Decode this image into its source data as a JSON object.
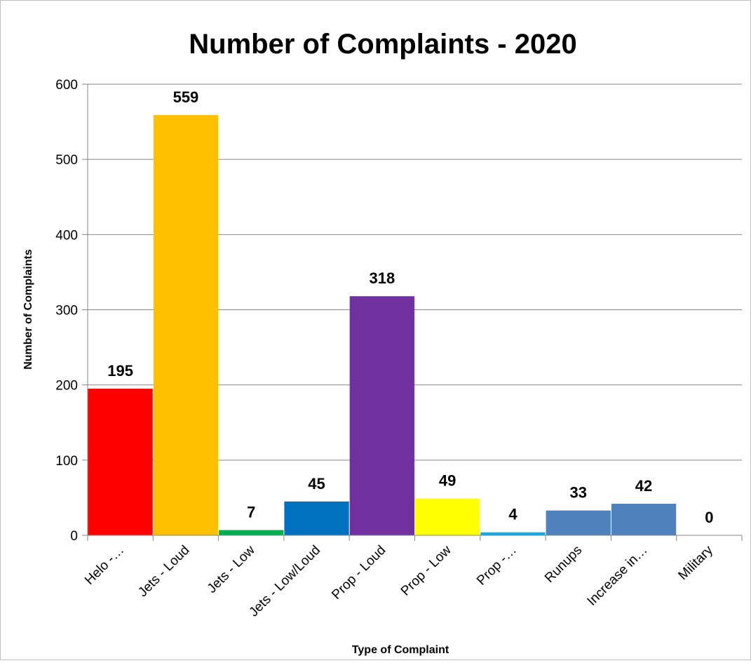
{
  "chart_data": {
    "type": "bar",
    "title": "Number of Complaints - 2020",
    "xlabel": "Type of Complaint",
    "ylabel": "Number of Complaints",
    "ylim": [
      0,
      600
    ],
    "yticks": [
      0,
      100,
      200,
      300,
      400,
      500,
      600
    ],
    "categories": [
      "Helo -…",
      "Jets - Loud",
      "Jets - Low",
      "Jets - Low/Loud",
      "Prop - Loud",
      "Prop - Low",
      "Prop -…",
      "Runups",
      "Increase in…",
      "Military"
    ],
    "values": [
      195,
      559,
      7,
      45,
      318,
      49,
      4,
      33,
      42,
      0
    ],
    "data_labels": [
      "195",
      "559",
      "7",
      "45",
      "318",
      "49",
      "4",
      "33",
      "42",
      "0"
    ],
    "colors": [
      "#ff0000",
      "#ffc000",
      "#00b050",
      "#0070c0",
      "#7030a0",
      "#ffff00",
      "#00b0f0",
      "#4f81bd",
      "#4f81bd",
      "#4f81bd"
    ],
    "grid": true,
    "legend": "none"
  }
}
